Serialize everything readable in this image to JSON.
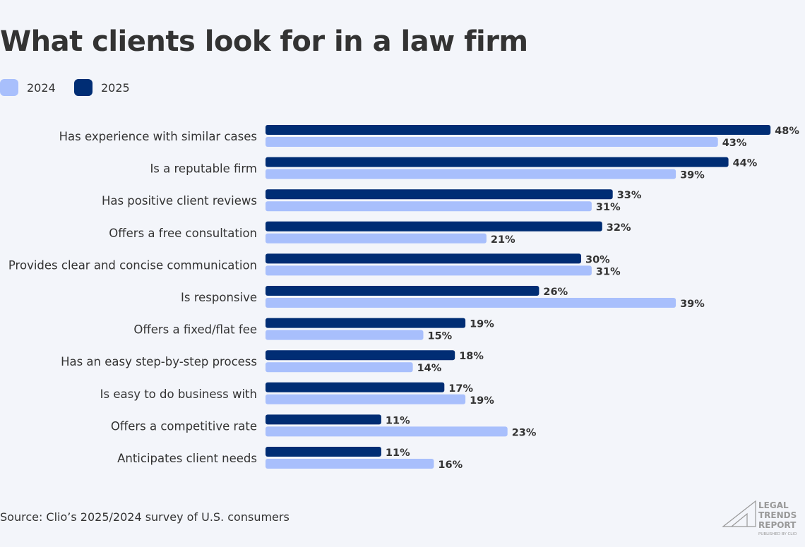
{
  "chart_data": {
    "type": "bar",
    "orientation": "horizontal",
    "title": "What clients look for in a law firm",
    "categories": [
      "Has experience with similar cases",
      "Is a reputable firm",
      "Has positive client reviews",
      "Offers a free consultation",
      "Provides clear and concise communication",
      "Is responsive",
      "Offers a fixed/flat fee",
      "Has an easy step-by-step process",
      "Is easy to do business with",
      "Offers a competitive rate",
      "Anticipates client needs"
    ],
    "series": [
      {
        "name": "2025",
        "color": "#002d74",
        "values": [
          48,
          44,
          33,
          32,
          30,
          26,
          19,
          18,
          17,
          11,
          11
        ]
      },
      {
        "name": "2024",
        "color": "#a8bffc",
        "values": [
          43,
          39,
          31,
          21,
          31,
          39,
          15,
          14,
          19,
          23,
          16
        ]
      }
    ],
    "legend_order": [
      "2024",
      "2025"
    ],
    "value_suffix": "%",
    "legend_position": "top-left",
    "grid": false,
    "xlim": [
      0,
      48
    ]
  },
  "source": "Source: Clio’s 2025/2024 survey of U.S. consumers",
  "logo": {
    "lines": [
      "LEGAL",
      "TRENDS",
      "REPORT"
    ],
    "sub": "PUBLISHED BY CLIO"
  }
}
